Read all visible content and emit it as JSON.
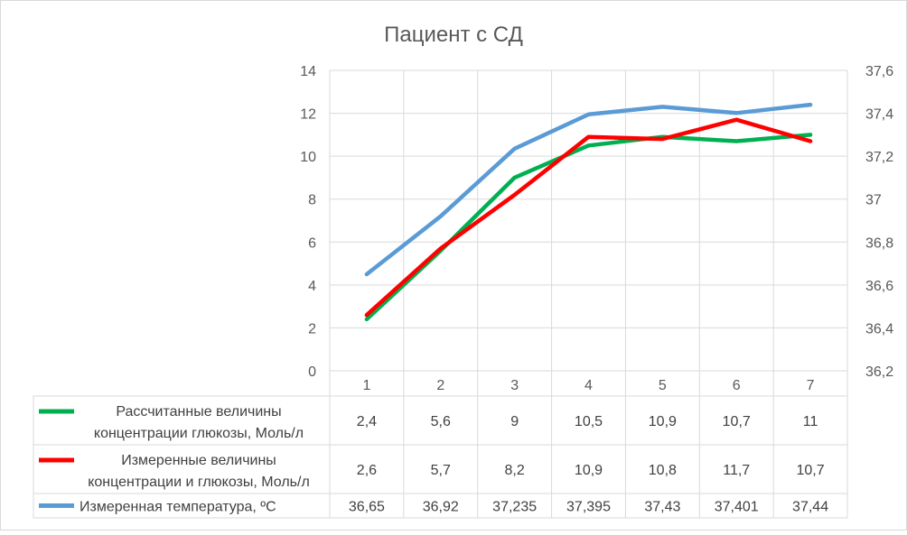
{
  "chart_data": {
    "type": "line",
    "title": "Пациент с СД",
    "categories": [
      "1",
      "2",
      "3",
      "4",
      "5",
      "6",
      "7"
    ],
    "y_left": {
      "min": 0,
      "max": 14,
      "ticks": [
        "0",
        "2",
        "4",
        "6",
        "8",
        "10",
        "12",
        "14"
      ]
    },
    "y_right": {
      "min": 36.2,
      "max": 37.6,
      "ticks": [
        "36,2",
        "36,4",
        "36,6",
        "36,8",
        "37",
        "37,2",
        "37,4",
        "37,6"
      ]
    },
    "grid": true,
    "legend": "data-table",
    "series": [
      {
        "name_lines": [
          "Рассчитанные величины",
          "концентрации глюкозы, Моль/л"
        ],
        "color": "#00b050",
        "axis": "left",
        "values": [
          2.4,
          5.6,
          9,
          10.5,
          10.9,
          10.7,
          11
        ],
        "labels": [
          "2,4",
          "5,6",
          "9",
          "10,5",
          "10,9",
          "10,7",
          "11"
        ]
      },
      {
        "name_lines": [
          "Измеренные величины",
          "концентрации и глюкозы, Моль/л"
        ],
        "color": "#ff0000",
        "axis": "left",
        "values": [
          2.6,
          5.7,
          8.2,
          10.9,
          10.8,
          11.7,
          10.7
        ],
        "labels": [
          "2,6",
          "5,7",
          "8,2",
          "10,9",
          "10,8",
          "11,7",
          "10,7"
        ]
      },
      {
        "name_lines": [
          "Измеренная температура, ºС"
        ],
        "color": "#5b9bd5",
        "axis": "right",
        "values": [
          36.65,
          36.92,
          37.235,
          37.395,
          37.43,
          37.401,
          37.44
        ],
        "labels": [
          "36,65",
          "36,92",
          "37,235",
          "37,395",
          "37,43",
          "37,401",
          "37,44"
        ]
      }
    ]
  }
}
